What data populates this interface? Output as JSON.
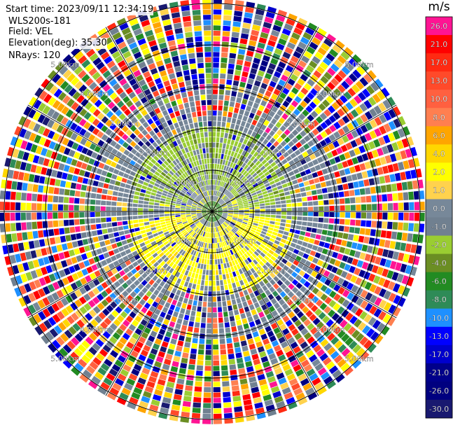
{
  "info": {
    "start_time": "Start time: 2023/09/11 12:34:19",
    "instrument": "WLS200s-181",
    "field": "Field: VEL",
    "elevation": "Elevation(deg): 35.30",
    "nrays": "NRays: 120"
  },
  "chart_data": {
    "type": "heatmap",
    "projection": "polar-ppi",
    "field": "VEL",
    "units": "m/s",
    "n_rays": 120,
    "range_ring_labels": [
      "1.00km",
      "2.00km",
      "3.00km",
      "4.00km",
      "5.00km"
    ],
    "colorbar": {
      "title": "m/s",
      "tick_labels": [
        "26.0",
        "21.0",
        "17.0",
        "13.0",
        "10.0",
        "8.0",
        "6.0",
        "4.0",
        "2.0",
        "1.0",
        "0.0",
        "-1.0",
        "-2.0",
        "-4.0",
        "-6.0",
        "-8.0",
        "-10.0",
        "-13.0",
        "-17.0",
        "-21.0",
        "-26.0",
        "-30.0"
      ],
      "bins": [
        {
          "label": "26.0",
          "color": "#ff1493"
        },
        {
          "label": "21.0",
          "color": "#ff0000"
        },
        {
          "label": "17.0",
          "color": "#ff2a12"
        },
        {
          "label": "13.0",
          "color": "#ff4a2a"
        },
        {
          "label": "10.0",
          "color": "#ff6040"
        },
        {
          "label": "8.0",
          "color": "#ff7f50"
        },
        {
          "label": "6.0",
          "color": "#ffa500"
        },
        {
          "label": "4.0",
          "color": "#ffd700"
        },
        {
          "label": "2.0",
          "color": "#ffff00"
        },
        {
          "label": "1.0",
          "color": "#ffd24d"
        },
        {
          "label": "0.0",
          "color": "#778899"
        },
        {
          "label": "-1.0",
          "color": "#708090"
        },
        {
          "label": "-2.0",
          "color": "#9acd32"
        },
        {
          "label": "-4.0",
          "color": "#6b8e23"
        },
        {
          "label": "-6.0",
          "color": "#228b22"
        },
        {
          "label": "-8.0",
          "color": "#2e8b57"
        },
        {
          "label": "-10.0",
          "color": "#1e90ff"
        },
        {
          "label": "-13.0",
          "color": "#0000ff"
        },
        {
          "label": "-17.0",
          "color": "#0000cd"
        },
        {
          "label": "-21.0",
          "color": "#00008b"
        },
        {
          "label": "-26.0",
          "color": "#000080"
        },
        {
          "label": "-30.0",
          "color": "#191970"
        }
      ]
    }
  }
}
